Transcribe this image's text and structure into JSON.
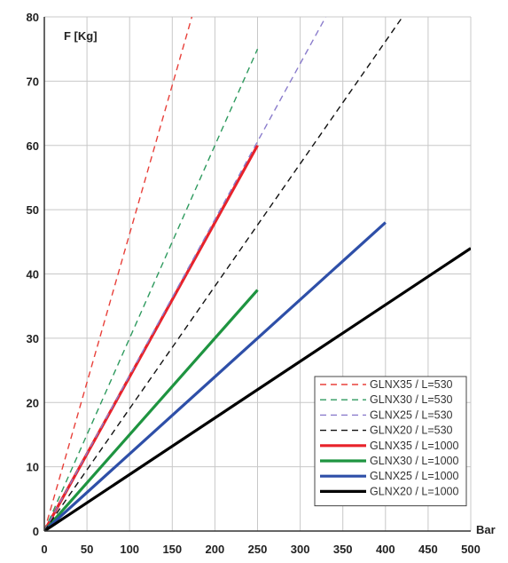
{
  "chart_data": {
    "type": "line",
    "title": "",
    "xlabel": "Bar",
    "ylabel": "F [Kg]",
    "xlim": [
      0,
      500
    ],
    "ylim": [
      0,
      80
    ],
    "xticks": [
      0,
      50,
      100,
      150,
      200,
      250,
      300,
      350,
      400,
      450,
      500
    ],
    "yticks": [
      0,
      10,
      20,
      30,
      40,
      50,
      60,
      70,
      80
    ],
    "grid": true,
    "legend_position": "bottom-right",
    "series": [
      {
        "name": "GLNX35 / L=530",
        "color": "#e8403a",
        "style": "dashed",
        "x": [
          0,
          173
        ],
        "y": [
          0,
          80
        ]
      },
      {
        "name": "GLNX30 / L=530",
        "color": "#2e9a5e",
        "style": "dashed",
        "x": [
          0,
          250
        ],
        "y": [
          0,
          75
        ]
      },
      {
        "name": "GLNX25 / L=530",
        "color": "#8a7ccc",
        "style": "dashed",
        "x": [
          0,
          330
        ],
        "y": [
          0,
          80
        ]
      },
      {
        "name": "GLNX20 / L=530",
        "color": "#111111",
        "style": "dashed",
        "x": [
          0,
          420
        ],
        "y": [
          0,
          80
        ]
      },
      {
        "name": "GLNX35 / L=1000",
        "color": "#e8222a",
        "style": "solid",
        "x": [
          0,
          250
        ],
        "y": [
          0,
          60
        ]
      },
      {
        "name": "GLNX30 / L=1000",
        "color": "#1e9440",
        "style": "solid",
        "x": [
          0,
          250
        ],
        "y": [
          0,
          37.5
        ]
      },
      {
        "name": "GLNX25 / L=1000",
        "color": "#2e4fa8",
        "style": "solid",
        "x": [
          0,
          400
        ],
        "y": [
          0,
          48
        ]
      },
      {
        "name": "GLNX20 / L=1000",
        "color": "#000000",
        "style": "solid",
        "x": [
          0,
          500
        ],
        "y": [
          0,
          44
        ]
      }
    ]
  }
}
